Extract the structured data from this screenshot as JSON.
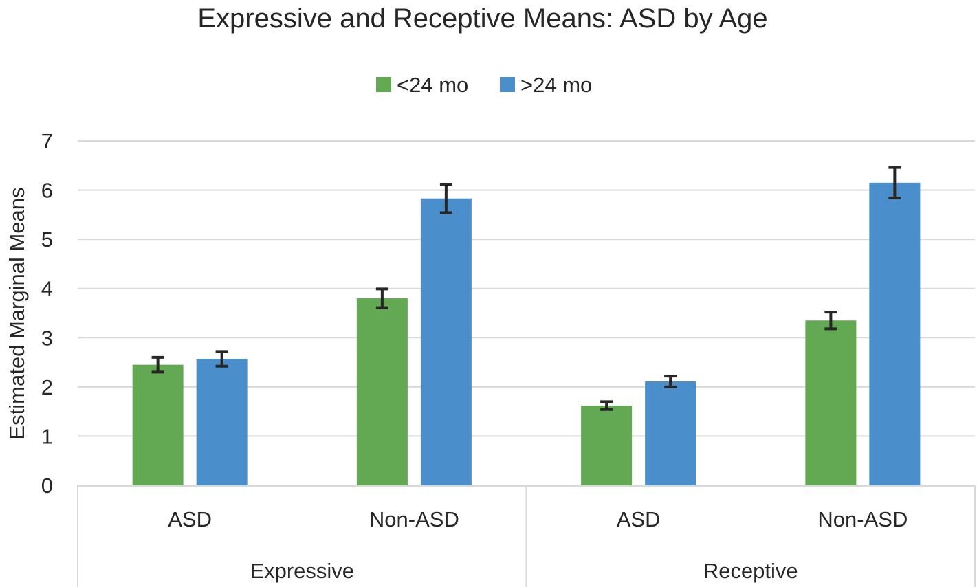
{
  "chart_data": {
    "type": "bar",
    "title": "Expressive and Receptive Means: ASD by Age",
    "ylabel": "Estimated Marginal Means",
    "xlabel": "",
    "ylim": [
      0,
      7
    ],
    "yticks": [
      0,
      1,
      2,
      3,
      4,
      5,
      6,
      7
    ],
    "grid": true,
    "legend_position": "top-center",
    "groups": [
      {
        "label": "Expressive",
        "categories": [
          "ASD",
          "Non-ASD"
        ]
      },
      {
        "label": "Receptive",
        "categories": [
          "ASD",
          "Non-ASD"
        ]
      }
    ],
    "categories": [
      "ASD",
      "Non-ASD",
      "ASD",
      "Non-ASD"
    ],
    "series": [
      {
        "name": "<24 mo",
        "color": "#63a853",
        "values": [
          2.45,
          3.8,
          1.62,
          3.35
        ],
        "error": [
          0.15,
          0.19,
          0.08,
          0.17
        ]
      },
      {
        "name": ">24 mo",
        "color": "#4a8ecc",
        "values": [
          2.57,
          5.83,
          2.11,
          6.15
        ],
        "error": [
          0.15,
          0.29,
          0.11,
          0.31
        ]
      }
    ]
  }
}
